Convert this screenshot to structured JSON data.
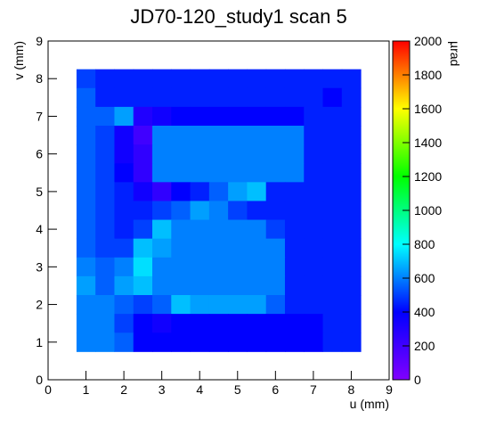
{
  "chart_data": {
    "type": "heatmap",
    "title": "JD70-120_study1 scan 5",
    "x_label": "u (mm)",
    "y_label": "v (mm)",
    "z_label": "µrad",
    "x": [
      1,
      1.5,
      2,
      2.5,
      3,
      3.5,
      4,
      4.5,
      5,
      5.5,
      6,
      6.5,
      7,
      7.5,
      8
    ],
    "y": [
      8,
      7.5,
      7,
      6.5,
      6,
      5.5,
      5,
      4.5,
      4,
      3.5,
      3,
      2.5,
      2,
      1.5,
      1
    ],
    "z": [
      [
        500,
        450,
        450,
        450,
        450,
        450,
        450,
        450,
        450,
        450,
        450,
        450,
        450,
        450,
        450
      ],
      [
        550,
        450,
        450,
        450,
        450,
        450,
        450,
        450,
        450,
        450,
        450,
        450,
        450,
        400,
        450
      ],
      [
        550,
        550,
        650,
        300,
        350,
        400,
        400,
        400,
        400,
        400,
        400,
        400,
        450,
        450,
        450
      ],
      [
        550,
        500,
        350,
        200,
        600,
        600,
        600,
        600,
        600,
        600,
        600,
        600,
        450,
        450,
        450
      ],
      [
        550,
        500,
        350,
        250,
        600,
        600,
        600,
        600,
        600,
        600,
        600,
        600,
        450,
        450,
        450
      ],
      [
        550,
        500,
        400,
        250,
        600,
        600,
        600,
        600,
        600,
        600,
        600,
        600,
        450,
        450,
        450
      ],
      [
        550,
        500,
        450,
        350,
        250,
        400,
        450,
        550,
        650,
        700,
        450,
        450,
        450,
        450,
        450
      ],
      [
        550,
        500,
        450,
        450,
        500,
        550,
        650,
        600,
        500,
        450,
        450,
        450,
        450,
        450,
        450
      ],
      [
        550,
        500,
        450,
        500,
        700,
        600,
        600,
        600,
        600,
        600,
        500,
        450,
        450,
        450,
        450
      ],
      [
        550,
        500,
        500,
        700,
        650,
        600,
        600,
        600,
        600,
        600,
        600,
        450,
        450,
        450,
        450
      ],
      [
        600,
        550,
        600,
        750,
        600,
        600,
        600,
        600,
        600,
        600,
        600,
        450,
        450,
        450,
        450
      ],
      [
        650,
        550,
        650,
        700,
        600,
        600,
        600,
        600,
        600,
        600,
        600,
        450,
        450,
        450,
        450
      ],
      [
        600,
        600,
        550,
        500,
        550,
        700,
        650,
        650,
        650,
        650,
        550,
        450,
        450,
        450,
        450
      ],
      [
        600,
        600,
        500,
        400,
        350,
        400,
        400,
        400,
        400,
        400,
        400,
        400,
        400,
        450,
        450
      ],
      [
        600,
        600,
        550,
        400,
        400,
        400,
        400,
        400,
        400,
        400,
        400,
        400,
        400,
        450,
        450
      ]
    ],
    "xlim": [
      0,
      9
    ],
    "ylim": [
      0,
      9
    ],
    "zlim": [
      0,
      2000
    ],
    "xticks": [
      0,
      1,
      2,
      3,
      4,
      5,
      6,
      7,
      8,
      9
    ],
    "yticks": [
      0,
      1,
      2,
      3,
      4,
      5,
      6,
      7,
      8,
      9
    ],
    "zticks": [
      0,
      200,
      400,
      600,
      800,
      1000,
      1200,
      1400,
      1600,
      1800,
      2000
    ],
    "colorscale": [
      "#8000ff",
      "#0000ff",
      "#00ffff",
      "#00ff00",
      "#ffff00",
      "#ff0000"
    ]
  }
}
